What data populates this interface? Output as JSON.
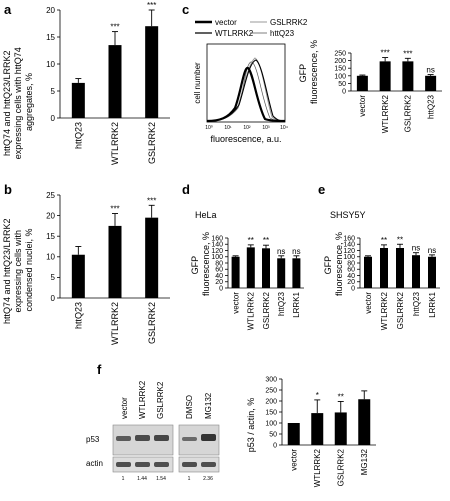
{
  "panels": {
    "a": {
      "letter": "a",
      "ylabel_lines": [
        "httQ74 and httQ23/LRRK2",
        "expressing cells with httQ74",
        "aggregates, %"
      ]
    },
    "b": {
      "letter": "b",
      "ylabel_lines": [
        "httQ74 and httQ23/LRRK2",
        "expressing cells with",
        "condensed nuclei, %"
      ]
    },
    "c": {
      "letter": "c",
      "legend": [
        "vector",
        "GSLRRK2",
        "WTLRRK2",
        "httQ23"
      ],
      "hist_ylabel": "cell number",
      "hist_xlabel": "fluorescence, a.u.",
      "hist_xticks": [
        "10⁰",
        "10¹",
        "10²",
        "10³",
        "10⁴"
      ],
      "bar_ylabel_lines": [
        "GFP",
        "fluorescence, %"
      ]
    },
    "d": {
      "letter": "d",
      "cell_line": "HeLa",
      "ylabel_lines": [
        "GFP",
        "fluorescence, %"
      ]
    },
    "e": {
      "letter": "e",
      "cell_line": "SHSY5Y",
      "ylabel_lines": [
        "GFP",
        "fluorescence, %"
      ]
    },
    "f": {
      "letter": "f",
      "blot_groups": [
        [
          "vector",
          "WTLRRK2",
          "GSLRRK2"
        ],
        [
          "DMSO",
          "MG132"
        ]
      ],
      "blot_rows": [
        "p53",
        "actin"
      ],
      "quant": [
        [
          "1",
          "1.44",
          "1.54"
        ],
        [
          "1",
          "2.36"
        ]
      ],
      "bar_ylabel": "p53 / actin, %"
    }
  },
  "chart_data": [
    {
      "id": "a",
      "type": "bar",
      "categories": [
        "httQ23",
        "WTLRRK2",
        "GSLRRK2"
      ],
      "values": [
        6.5,
        13.5,
        17
      ],
      "errors": [
        0.8,
        2.5,
        3
      ],
      "sig": [
        "",
        "***",
        "***"
      ],
      "ylim": [
        0,
        20
      ],
      "yticks": [
        0,
        5,
        10,
        15,
        20
      ]
    },
    {
      "id": "b",
      "type": "bar",
      "categories": [
        "httQ23",
        "WTLRRK2",
        "GSLRRK2"
      ],
      "values": [
        10.5,
        17.5,
        19.5
      ],
      "errors": [
        2,
        3,
        3
      ],
      "sig": [
        "",
        "***",
        "***"
      ],
      "ylim": [
        0,
        25
      ],
      "yticks": [
        0,
        5,
        10,
        15,
        20,
        25
      ]
    },
    {
      "id": "c",
      "type": "bar",
      "categories": [
        "vector",
        "WTLRRK2",
        "GSLRRK2",
        "httQ23"
      ],
      "values": [
        100,
        195,
        195,
        100
      ],
      "errors": [
        5,
        25,
        20,
        8
      ],
      "sig": [
        "",
        "***",
        "***",
        "ns"
      ],
      "ylim": [
        0,
        250
      ],
      "yticks": [
        0,
        50,
        100,
        150,
        200,
        250
      ]
    },
    {
      "id": "d",
      "type": "bar",
      "categories": [
        "vector",
        "WTLRRK2",
        "GSLRRK2",
        "httQ23",
        "LRRK1"
      ],
      "values": [
        100,
        130,
        127,
        95,
        95
      ],
      "errors": [
        3,
        8,
        10,
        8,
        8
      ],
      "sig": [
        "",
        "**",
        "**",
        "ns",
        "ns"
      ],
      "ylim": [
        0,
        160
      ],
      "yticks": [
        0,
        20,
        40,
        60,
        80,
        100,
        120,
        140,
        160
      ]
    },
    {
      "id": "e",
      "type": "bar",
      "categories": [
        "vector",
        "WTLRRK2",
        "GSLRRK2",
        "httQ23",
        "LRRK1"
      ],
      "values": [
        100,
        128,
        128,
        105,
        100
      ],
      "errors": [
        3,
        10,
        12,
        8,
        6
      ],
      "sig": [
        "",
        "**",
        "**",
        "ns",
        "ns"
      ],
      "ylim": [
        0,
        160
      ],
      "yticks": [
        0,
        20,
        40,
        60,
        80,
        100,
        120,
        140,
        160
      ]
    },
    {
      "id": "f",
      "type": "bar",
      "categories": [
        "vector",
        "WTLRRK2",
        "GSLRRK2",
        "MG132"
      ],
      "values": [
        100,
        145,
        148,
        208
      ],
      "errors": [
        0,
        60,
        50,
        38
      ],
      "sig": [
        "",
        "*",
        "**",
        ""
      ],
      "ylim": [
        0,
        300
      ],
      "yticks": [
        0,
        50,
        100,
        150,
        200,
        250,
        300
      ]
    }
  ]
}
